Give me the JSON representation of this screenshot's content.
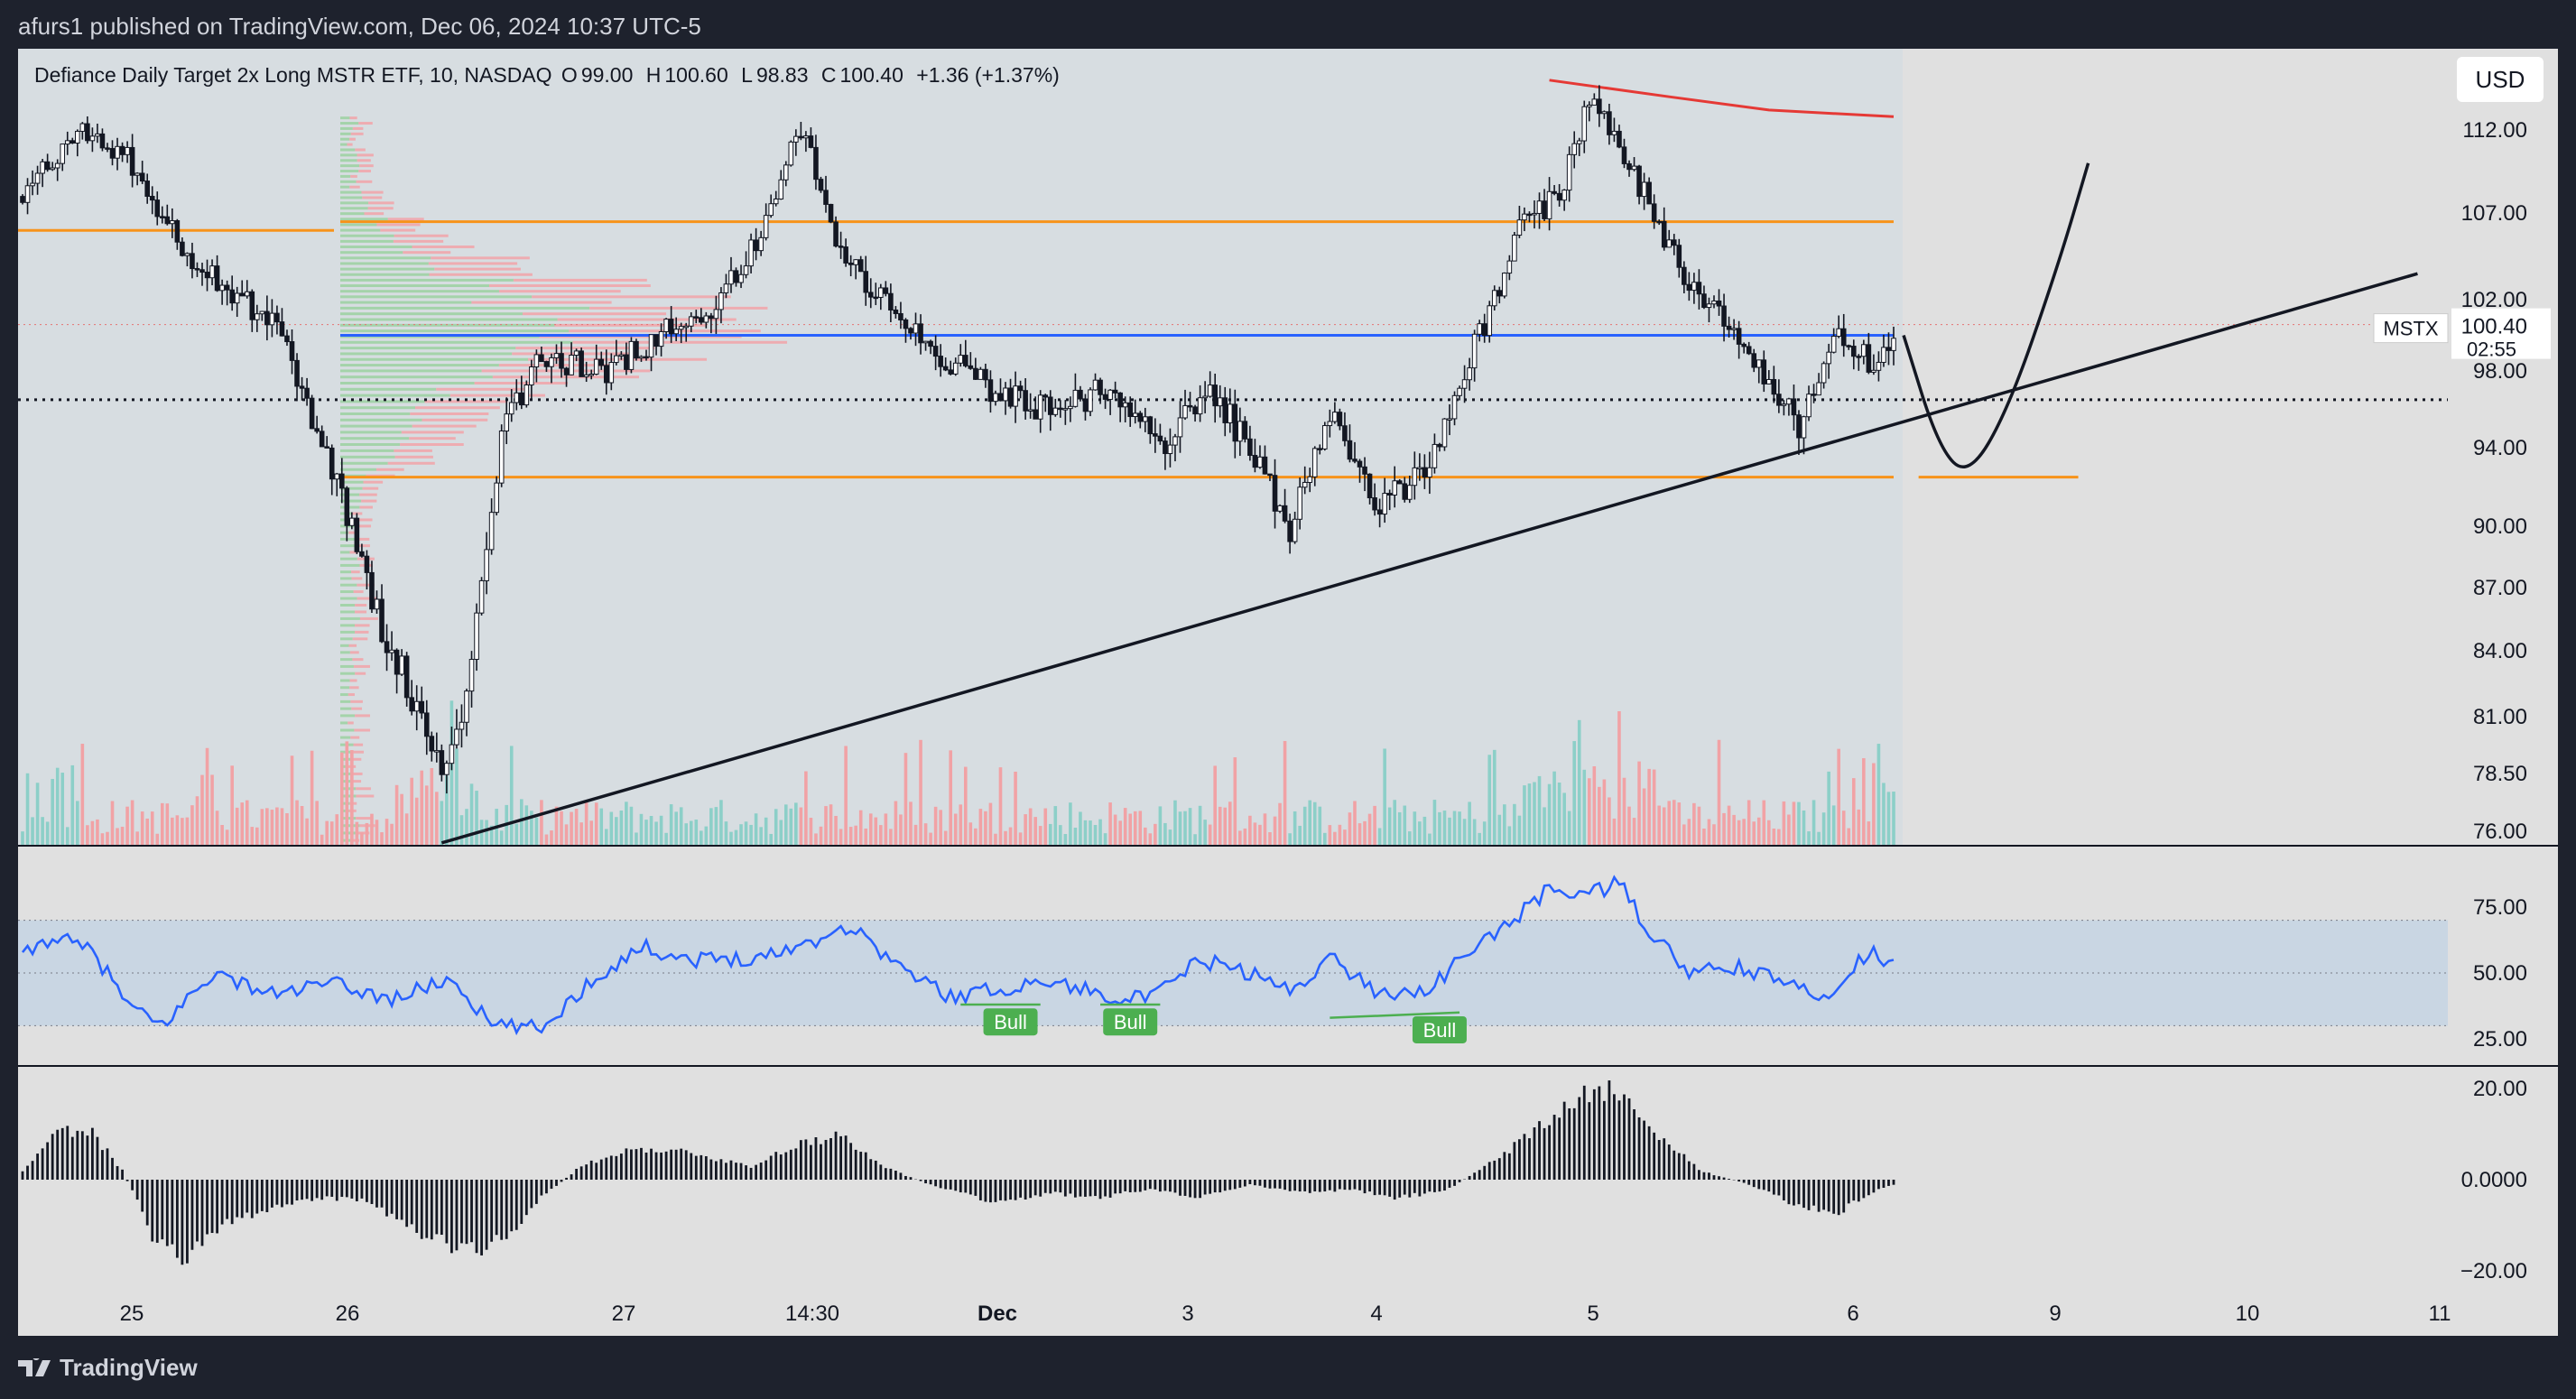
{
  "header": {
    "published": "afurs1 published on TradingView.com, Dec 06, 2024 10:37 UTC-5"
  },
  "footer": {
    "brand": "TradingView"
  },
  "legend": {
    "title": "Defiance Daily Target 2x Long MSTR ETF, 10, NASDAQ",
    "open_label": "O",
    "open": "99.00",
    "high_label": "H",
    "high": "100.60",
    "low_label": "L",
    "low": "98.83",
    "close_label": "C",
    "close": "100.40",
    "change": "+1.36 (+1.37%)"
  },
  "currency": "USD",
  "price_tag": {
    "symbol": "MSTX",
    "price": "100.40",
    "countdown": "02:55"
  },
  "colors": {
    "bull": "#26a69a",
    "bear": "#ef5350",
    "candle_up": "#ffffff",
    "candle_down": "#131722",
    "support": "#f7931a",
    "poc": "#2962ff",
    "rsi": "#2962ff",
    "divergence": "#4caf50",
    "sma": "#e53935"
  },
  "chart_data": [
    {
      "type": "candlestick",
      "symbol": "MSTX",
      "interval": "10",
      "exchange": "NASDAQ",
      "x_ticks": [
        "25",
        "26",
        "27",
        "14:30",
        "Dec",
        "3",
        "4",
        "5",
        "6",
        "9",
        "10",
        "11"
      ],
      "y_ticks": [
        "112.00",
        "107.00",
        "102.00",
        "98.00",
        "94.00",
        "90.00",
        "87.00",
        "84.00",
        "81.00",
        "78.50",
        "76.00"
      ],
      "ylim": [
        75.5,
        114.5
      ],
      "anchors": [
        {
          "t": 0,
          "p": 108
        },
        {
          "t": 12,
          "p": 112
        },
        {
          "t": 22,
          "p": 110
        },
        {
          "t": 34,
          "p": 104
        },
        {
          "t": 40,
          "p": 103
        },
        {
          "t": 52,
          "p": 100
        },
        {
          "t": 60,
          "p": 94
        },
        {
          "t": 66,
          "p": 90
        },
        {
          "t": 72,
          "p": 85
        },
        {
          "t": 78,
          "p": 82
        },
        {
          "t": 84,
          "p": 78.5
        },
        {
          "t": 90,
          "p": 83
        },
        {
          "t": 96,
          "p": 95
        },
        {
          "t": 104,
          "p": 99
        },
        {
          "t": 116,
          "p": 98
        },
        {
          "t": 128,
          "p": 100
        },
        {
          "t": 140,
          "p": 102
        },
        {
          "t": 148,
          "p": 106
        },
        {
          "t": 156,
          "p": 112
        },
        {
          "t": 164,
          "p": 105
        },
        {
          "t": 172,
          "p": 102
        },
        {
          "t": 184,
          "p": 99
        },
        {
          "t": 194,
          "p": 97
        },
        {
          "t": 206,
          "p": 96
        },
        {
          "t": 218,
          "p": 97
        },
        {
          "t": 228,
          "p": 94
        },
        {
          "t": 238,
          "p": 97
        },
        {
          "t": 246,
          "p": 94
        },
        {
          "t": 254,
          "p": 90
        },
        {
          "t": 262,
          "p": 96
        },
        {
          "t": 272,
          "p": 91
        },
        {
          "t": 282,
          "p": 93
        },
        {
          "t": 292,
          "p": 100
        },
        {
          "t": 300,
          "p": 106
        },
        {
          "t": 308,
          "p": 108
        },
        {
          "t": 314,
          "p": 114
        },
        {
          "t": 322,
          "p": 110
        },
        {
          "t": 332,
          "p": 104
        },
        {
          "t": 344,
          "p": 100
        },
        {
          "t": 356,
          "p": 95
        },
        {
          "t": 364,
          "p": 100
        },
        {
          "t": 372,
          "p": 98
        },
        {
          "t": 375,
          "p": 100.4
        }
      ],
      "bars": 376,
      "levels": {
        "resistance": 106.5,
        "poc": 100.0,
        "support": 92.5,
        "dotted": 96.5,
        "upper_left": 106.0
      },
      "trendline": {
        "from": {
          "t": 84,
          "p": 75.5
        },
        "to": {
          "t": 480,
          "p": 103.5
        }
      },
      "projection": [
        {
          "t": 377,
          "p": 100
        },
        {
          "t": 384,
          "p": 94
        },
        {
          "t": 390,
          "p": 92.5
        },
        {
          "t": 398,
          "p": 96
        },
        {
          "t": 408,
          "p": 104
        },
        {
          "t": 414,
          "p": 110
        }
      ],
      "projection_level": {
        "from_t": 380,
        "to_t": 412,
        "p": 92.5
      },
      "sma": [
        {
          "t": 306,
          "p": 115
        },
        {
          "t": 330,
          "p": 114
        },
        {
          "t": 350,
          "p": 113.2
        },
        {
          "t": 375,
          "p": 112.8
        }
      ]
    },
    {
      "type": "line",
      "name": "RSI",
      "y_ticks": [
        "75.00",
        "50.00",
        "25.00"
      ],
      "ylim": [
        15,
        90
      ],
      "band": [
        30,
        70
      ],
      "anchors": [
        {
          "t": 0,
          "v": 56
        },
        {
          "t": 6,
          "v": 64
        },
        {
          "t": 14,
          "v": 58
        },
        {
          "t": 22,
          "v": 36
        },
        {
          "t": 28,
          "v": 30
        },
        {
          "t": 38,
          "v": 50
        },
        {
          "t": 50,
          "v": 42
        },
        {
          "t": 62,
          "v": 46
        },
        {
          "t": 74,
          "v": 40
        },
        {
          "t": 86,
          "v": 48
        },
        {
          "t": 94,
          "v": 30
        },
        {
          "t": 104,
          "v": 29
        },
        {
          "t": 114,
          "v": 47
        },
        {
          "t": 124,
          "v": 60
        },
        {
          "t": 134,
          "v": 55
        },
        {
          "t": 148,
          "v": 56
        },
        {
          "t": 158,
          "v": 62
        },
        {
          "t": 166,
          "v": 68
        },
        {
          "t": 176,
          "v": 52
        },
        {
          "t": 186,
          "v": 41
        },
        {
          "t": 196,
          "v": 44
        },
        {
          "t": 206,
          "v": 47
        },
        {
          "t": 216,
          "v": 42
        },
        {
          "t": 226,
          "v": 40
        },
        {
          "t": 236,
          "v": 55
        },
        {
          "t": 246,
          "v": 50
        },
        {
          "t": 254,
          "v": 43
        },
        {
          "t": 262,
          "v": 56
        },
        {
          "t": 272,
          "v": 42
        },
        {
          "t": 282,
          "v": 44
        },
        {
          "t": 290,
          "v": 58
        },
        {
          "t": 300,
          "v": 72
        },
        {
          "t": 306,
          "v": 82
        },
        {
          "t": 314,
          "v": 80
        },
        {
          "t": 320,
          "v": 84
        },
        {
          "t": 326,
          "v": 66
        },
        {
          "t": 334,
          "v": 50
        },
        {
          "t": 344,
          "v": 52
        },
        {
          "t": 354,
          "v": 46
        },
        {
          "t": 360,
          "v": 40
        },
        {
          "t": 366,
          "v": 50
        },
        {
          "t": 370,
          "v": 58
        },
        {
          "t": 375,
          "v": 54
        }
      ],
      "divergence_labels": [
        {
          "text": "Bull",
          "t": 198,
          "v": 40
        },
        {
          "text": "Bull",
          "t": 222,
          "v": 40
        },
        {
          "text": "Bull",
          "t": 284,
          "v": 37
        }
      ]
    },
    {
      "type": "bar",
      "name": "Oscillator",
      "y_ticks": [
        "20.00",
        "0.0000",
        "−20.00"
      ],
      "ylim": [
        -22,
        22
      ],
      "anchors": [
        {
          "t": 0,
          "v": 2
        },
        {
          "t": 8,
          "v": 11
        },
        {
          "t": 14,
          "v": 10
        },
        {
          "t": 20,
          "v": 2
        },
        {
          "t": 26,
          "v": -12
        },
        {
          "t": 32,
          "v": -18
        },
        {
          "t": 40,
          "v": -10
        },
        {
          "t": 50,
          "v": -6
        },
        {
          "t": 60,
          "v": -4
        },
        {
          "t": 70,
          "v": -5
        },
        {
          "t": 80,
          "v": -12
        },
        {
          "t": 88,
          "v": -15
        },
        {
          "t": 96,
          "v": -14
        },
        {
          "t": 104,
          "v": -4
        },
        {
          "t": 112,
          "v": 3
        },
        {
          "t": 124,
          "v": 7
        },
        {
          "t": 134,
          "v": 6
        },
        {
          "t": 146,
          "v": 3
        },
        {
          "t": 156,
          "v": 8
        },
        {
          "t": 164,
          "v": 10
        },
        {
          "t": 172,
          "v": 3
        },
        {
          "t": 184,
          "v": -2
        },
        {
          "t": 196,
          "v": -5
        },
        {
          "t": 206,
          "v": -3
        },
        {
          "t": 216,
          "v": -4
        },
        {
          "t": 226,
          "v": -2
        },
        {
          "t": 236,
          "v": -4
        },
        {
          "t": 246,
          "v": -1
        },
        {
          "t": 256,
          "v": -3
        },
        {
          "t": 266,
          "v": -2
        },
        {
          "t": 276,
          "v": -4
        },
        {
          "t": 286,
          "v": -2
        },
        {
          "t": 296,
          "v": 5
        },
        {
          "t": 306,
          "v": 13
        },
        {
          "t": 314,
          "v": 19
        },
        {
          "t": 320,
          "v": 20
        },
        {
          "t": 328,
          "v": 10
        },
        {
          "t": 336,
          "v": 2
        },
        {
          "t": 346,
          "v": -1
        },
        {
          "t": 356,
          "v": -6
        },
        {
          "t": 364,
          "v": -7
        },
        {
          "t": 370,
          "v": -3
        },
        {
          "t": 375,
          "v": -1
        }
      ]
    }
  ]
}
